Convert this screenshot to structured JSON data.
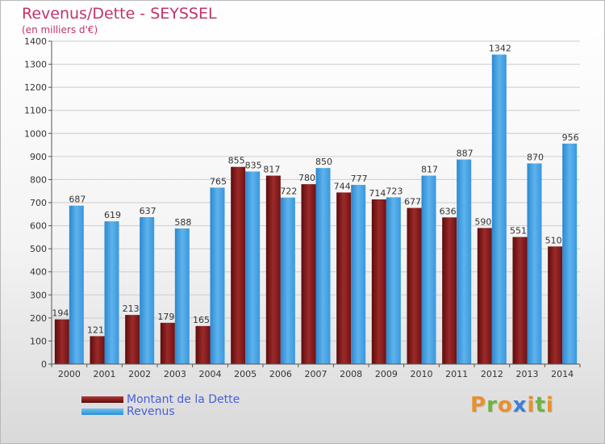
{
  "header": {
    "title": "Revenus/Dette - SEYSSEL",
    "subtitle": "(en milliers d'€)"
  },
  "legend": {
    "dette_label": "Montant de la Dette",
    "revenus_label": "Revenus"
  },
  "logo": {
    "text": "Proxiti"
  },
  "colors": {
    "dette": "#7a1515",
    "revenus": "#3d9be3",
    "title": "#c1336b",
    "legend_text": "#4a5fd6"
  },
  "chart_data": {
    "type": "bar",
    "title": "Revenus/Dette - SEYSSEL",
    "subtitle": "(en milliers d'€)",
    "xlabel": "",
    "ylabel": "",
    "ylim": [
      0,
      1400
    ],
    "yticks": [
      0,
      100,
      200,
      300,
      400,
      500,
      600,
      700,
      800,
      900,
      1000,
      1100,
      1200,
      1300,
      1400
    ],
    "grid": true,
    "legend_position": "bottom-left",
    "categories": [
      "2000",
      "2001",
      "2002",
      "2003",
      "2004",
      "2005",
      "2006",
      "2007",
      "2008",
      "2009",
      "2010",
      "2011",
      "2012",
      "2013",
      "2014"
    ],
    "series": [
      {
        "name": "Montant de la Dette",
        "values": [
          194,
          121,
          213,
          179,
          165,
          855,
          817,
          780,
          744,
          714,
          677,
          636,
          590,
          551,
          510
        ]
      },
      {
        "name": "Revenus",
        "values": [
          687,
          619,
          637,
          588,
          765,
          835,
          722,
          850,
          777,
          723,
          817,
          887,
          1342,
          870,
          956
        ]
      }
    ]
  }
}
